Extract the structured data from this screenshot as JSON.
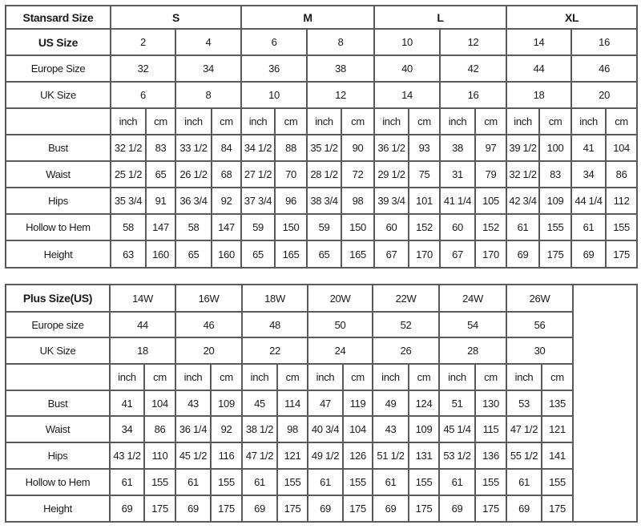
{
  "standard": {
    "header_label": "Stansard Size",
    "groups": [
      "S",
      "M",
      "L",
      "XL"
    ],
    "us_label": "US Size",
    "us": [
      "2",
      "4",
      "6",
      "8",
      "10",
      "12",
      "14",
      "16"
    ],
    "europe_label": "Europe Size",
    "europe": [
      "32",
      "34",
      "36",
      "38",
      "40",
      "42",
      "44",
      "46"
    ],
    "uk_label": "UK Size",
    "uk": [
      "6",
      "8",
      "10",
      "12",
      "14",
      "16",
      "18",
      "20"
    ],
    "units": [
      "inch",
      "cm"
    ],
    "measurements": [
      {
        "label": "Bust",
        "values": [
          "32 1/2",
          "83",
          "33 1/2",
          "84",
          "34 1/2",
          "88",
          "35 1/2",
          "90",
          "36 1/2",
          "93",
          "38",
          "97",
          "39 1/2",
          "100",
          "41",
          "104"
        ]
      },
      {
        "label": "Waist",
        "values": [
          "25 1/2",
          "65",
          "26 1/2",
          "68",
          "27 1/2",
          "70",
          "28 1/2",
          "72",
          "29 1/2",
          "75",
          "31",
          "79",
          "32 1/2",
          "83",
          "34",
          "86"
        ]
      },
      {
        "label": "Hips",
        "values": [
          "35 3/4",
          "91",
          "36 3/4",
          "92",
          "37 3/4",
          "96",
          "38 3/4",
          "98",
          "39 3/4",
          "101",
          "41 1/4",
          "105",
          "42 3/4",
          "109",
          "44 1/4",
          "112"
        ]
      },
      {
        "label": "Hollow to Hem",
        "values": [
          "58",
          "147",
          "58",
          "147",
          "59",
          "150",
          "59",
          "150",
          "60",
          "152",
          "60",
          "152",
          "61",
          "155",
          "61",
          "155"
        ]
      },
      {
        "label": "Height",
        "values": [
          "63",
          "160",
          "65",
          "160",
          "65",
          "165",
          "65",
          "165",
          "67",
          "170",
          "67",
          "170",
          "69",
          "175",
          "69",
          "175"
        ]
      }
    ]
  },
  "plus": {
    "header_label": "Plus Size(US)",
    "sizes": [
      "14W",
      "16W",
      "18W",
      "20W",
      "22W",
      "24W",
      "26W"
    ],
    "europe_label": "Europe size",
    "europe": [
      "44",
      "46",
      "48",
      "50",
      "52",
      "54",
      "56"
    ],
    "uk_label": "UK Size",
    "uk": [
      "18",
      "20",
      "22",
      "24",
      "26",
      "28",
      "30"
    ],
    "units": [
      "inch",
      "cm"
    ],
    "measurements": [
      {
        "label": "Bust",
        "values": [
          "41",
          "104",
          "43",
          "109",
          "45",
          "114",
          "47",
          "119",
          "49",
          "124",
          "51",
          "130",
          "53",
          "135"
        ]
      },
      {
        "label": "Waist",
        "values": [
          "34",
          "86",
          "36 1/4",
          "92",
          "38 1/2",
          "98",
          "40 3/4",
          "104",
          "43",
          "109",
          "45 1/4",
          "115",
          "47 1/2",
          "121"
        ]
      },
      {
        "label": "Hips",
        "values": [
          "43 1/2",
          "110",
          "45 1/2",
          "116",
          "47 1/2",
          "121",
          "49 1/2",
          "126",
          "51 1/2",
          "131",
          "53 1/2",
          "136",
          "55 1/2",
          "141"
        ]
      },
      {
        "label": "Hollow to Hem",
        "values": [
          "61",
          "155",
          "61",
          "155",
          "61",
          "155",
          "61",
          "155",
          "61",
          "155",
          "61",
          "155",
          "61",
          "155"
        ]
      },
      {
        "label": "Height",
        "values": [
          "69",
          "175",
          "69",
          "175",
          "69",
          "175",
          "69",
          "175",
          "69",
          "175",
          "69",
          "175",
          "69",
          "175"
        ]
      }
    ]
  }
}
